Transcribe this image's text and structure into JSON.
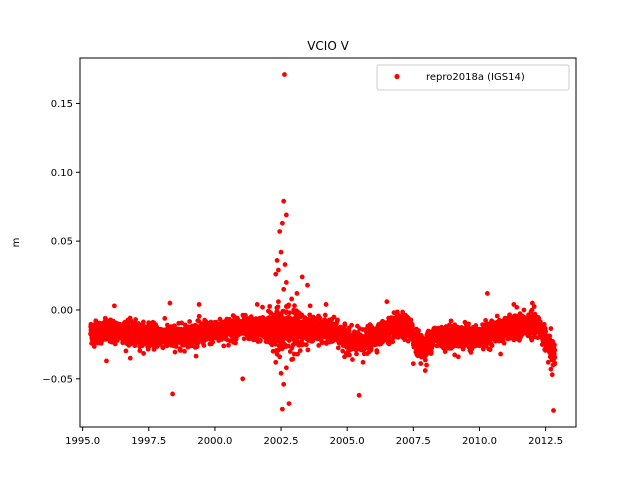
{
  "chart_data": {
    "type": "scatter",
    "title": "VCIO V",
    "xlabel": "",
    "ylabel": "m",
    "xlim": [
      1994.9,
      2013.65
    ],
    "ylim": [
      -0.085,
      0.183
    ],
    "xticks": [
      1995.0,
      1997.5,
      2000.0,
      2002.5,
      2005.0,
      2007.5,
      2010.0,
      2012.5
    ],
    "xtick_labels": [
      "1995.0",
      "1997.5",
      "2000.0",
      "2002.5",
      "2005.0",
      "2007.5",
      "2010.0",
      "2012.5"
    ],
    "yticks": [
      -0.05,
      0.0,
      0.05,
      0.1,
      0.15
    ],
    "ytick_labels": [
      "−0.05",
      "0.00",
      "0.05",
      "0.10",
      "0.15"
    ],
    "grid": false,
    "legend_position": "top-right",
    "series": [
      {
        "name": "repro2018a (IGS14)",
        "color": "#ff0000",
        "marker": "circle",
        "x_range": [
          1995.3,
          2012.85
        ],
        "baseline": [
          [
            1995.3,
            -0.016
          ],
          [
            1996.0,
            -0.016
          ],
          [
            1996.5,
            -0.015
          ],
          [
            1997.0,
            -0.018
          ],
          [
            1997.5,
            -0.018
          ],
          [
            1998.0,
            -0.019
          ],
          [
            1998.5,
            -0.02
          ],
          [
            1999.0,
            -0.018
          ],
          [
            1999.5,
            -0.017
          ],
          [
            2000.0,
            -0.016
          ],
          [
            2000.5,
            -0.014
          ],
          [
            2001.0,
            -0.013
          ],
          [
            2001.5,
            -0.014
          ],
          [
            2002.0,
            -0.014
          ],
          [
            2002.5,
            -0.013
          ],
          [
            2003.0,
            -0.013
          ],
          [
            2003.5,
            -0.014
          ],
          [
            2004.0,
            -0.014
          ],
          [
            2004.5,
            -0.016
          ],
          [
            2005.0,
            -0.022
          ],
          [
            2005.5,
            -0.024
          ],
          [
            2006.0,
            -0.02
          ],
          [
            2006.5,
            -0.015
          ],
          [
            2007.0,
            -0.012
          ],
          [
            2007.3,
            -0.012
          ],
          [
            2007.6,
            -0.022
          ],
          [
            2007.9,
            -0.028
          ],
          [
            2008.3,
            -0.018
          ],
          [
            2008.7,
            -0.02
          ],
          [
            2009.0,
            -0.019
          ],
          [
            2009.5,
            -0.02
          ],
          [
            2010.0,
            -0.02
          ],
          [
            2010.5,
            -0.016
          ],
          [
            2011.0,
            -0.014
          ],
          [
            2011.5,
            -0.012
          ],
          [
            2012.0,
            -0.01
          ],
          [
            2012.3,
            -0.013
          ],
          [
            2012.6,
            -0.025
          ],
          [
            2012.85,
            -0.032
          ]
        ],
        "scatter_amplitude": 0.008,
        "outliers": [
          [
            2002.63,
            0.171
          ],
          [
            2002.6,
            0.079
          ],
          [
            2002.7,
            0.069
          ],
          [
            2002.55,
            0.063
          ],
          [
            2002.45,
            0.057
          ],
          [
            2002.5,
            0.042
          ],
          [
            2002.35,
            0.036
          ],
          [
            2002.65,
            0.033
          ],
          [
            2002.4,
            0.029
          ],
          [
            2002.3,
            0.026
          ],
          [
            2003.3,
            0.024
          ],
          [
            2002.7,
            0.02
          ],
          [
            2002.6,
            0.015
          ],
          [
            2003.5,
            0.018
          ],
          [
            2003.1,
            0.012
          ],
          [
            2002.9,
            0.008
          ],
          [
            2002.4,
            0.006
          ],
          [
            2001.6,
            0.004
          ],
          [
            2003.6,
            0.003
          ],
          [
            2010.3,
            0.012
          ],
          [
            1998.3,
            0.005
          ],
          [
            1999.4,
            0.004
          ],
          [
            2001.8,
            0.002
          ],
          [
            2004.2,
            0.004
          ],
          [
            2006.5,
            0.006
          ],
          [
            2011.3,
            0.004
          ],
          [
            2012.0,
            0.005
          ],
          [
            1996.2,
            0.003
          ],
          [
            2002.55,
            -0.072
          ],
          [
            2002.8,
            -0.068
          ],
          [
            2002.6,
            -0.054
          ],
          [
            2002.5,
            -0.046
          ],
          [
            2002.7,
            -0.042
          ],
          [
            2002.3,
            -0.038
          ],
          [
            2002.45,
            -0.034
          ],
          [
            2002.9,
            -0.036
          ],
          [
            2003.0,
            -0.032
          ],
          [
            2002.2,
            -0.03
          ],
          [
            2001.05,
            -0.05
          ],
          [
            1998.4,
            -0.061
          ],
          [
            2005.45,
            -0.062
          ],
          [
            2012.8,
            -0.073
          ],
          [
            2012.75,
            -0.047
          ],
          [
            2012.7,
            -0.043
          ],
          [
            2012.78,
            -0.04
          ],
          [
            2012.6,
            -0.038
          ],
          [
            2007.5,
            -0.039
          ],
          [
            2007.95,
            -0.044
          ],
          [
            2008.0,
            -0.04
          ],
          [
            2005.2,
            -0.036
          ],
          [
            2005.6,
            -0.038
          ],
          [
            1995.9,
            -0.037
          ],
          [
            1996.8,
            -0.035
          ],
          [
            2004.9,
            -0.034
          ],
          [
            2009.2,
            -0.034
          ],
          [
            2010.8,
            -0.032
          ]
        ]
      }
    ]
  }
}
